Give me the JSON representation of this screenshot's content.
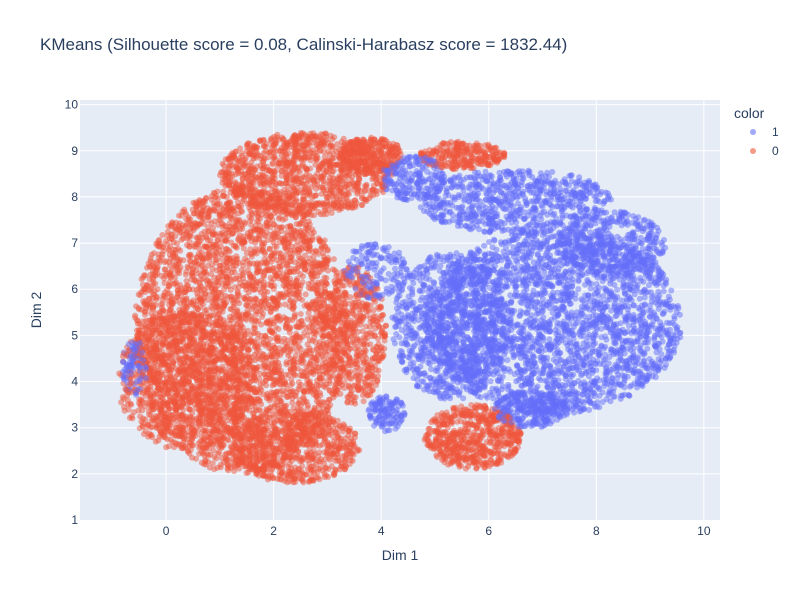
{
  "chart_data": {
    "type": "scatter",
    "title": "KMeans (Silhouette score = 0.08, Calinski-Harabasz score = 1832.44)",
    "xlabel": "Dim 1",
    "ylabel": "Dim 2",
    "xlim": [
      -1.6,
      10.3
    ],
    "ylim": [
      1,
      10.1
    ],
    "xticks": [
      0,
      2,
      4,
      6,
      8,
      10
    ],
    "yticks": [
      1,
      2,
      3,
      4,
      5,
      6,
      7,
      8,
      9,
      10
    ],
    "grid": true,
    "legend": {
      "title": "color",
      "placement": "top-right",
      "entries": [
        {
          "label": "1",
          "color": "#636efa"
        },
        {
          "label": "0",
          "color": "#EF553B"
        }
      ]
    },
    "series": [
      {
        "name": "1",
        "color": "#636efa",
        "regions": [
          {
            "cx": 7.2,
            "cy": 5.3,
            "rx": 2.4,
            "ry": 2.0,
            "n": 2600
          },
          {
            "cx": 5.3,
            "cy": 5.2,
            "rx": 1.1,
            "ry": 1.6,
            "n": 900
          },
          {
            "cx": 6.5,
            "cy": 7.9,
            "rx": 1.8,
            "ry": 0.7,
            "n": 700
          },
          {
            "cx": 8.3,
            "cy": 7.0,
            "rx": 1.0,
            "ry": 0.7,
            "n": 400
          },
          {
            "cx": 4.6,
            "cy": 8.4,
            "rx": 0.6,
            "ry": 0.5,
            "n": 200
          },
          {
            "cx": 3.9,
            "cy": 6.4,
            "rx": 0.6,
            "ry": 0.6,
            "n": 150
          },
          {
            "cx": 4.1,
            "cy": 3.3,
            "rx": 0.35,
            "ry": 0.4,
            "n": 120
          },
          {
            "cx": 6.8,
            "cy": 3.4,
            "rx": 0.7,
            "ry": 0.4,
            "n": 250
          },
          {
            "cx": -0.6,
            "cy": 4.3,
            "rx": 0.25,
            "ry": 0.6,
            "n": 80
          }
        ]
      },
      {
        "name": "0",
        "color": "#EF553B",
        "regions": [
          {
            "cx": 1.4,
            "cy": 5.1,
            "rx": 2.0,
            "ry": 3.1,
            "n": 3600
          },
          {
            "cx": 2.6,
            "cy": 8.5,
            "rx": 1.6,
            "ry": 0.9,
            "n": 1100
          },
          {
            "cx": 0.4,
            "cy": 4.0,
            "rx": 1.3,
            "ry": 1.5,
            "n": 900
          },
          {
            "cx": 2.4,
            "cy": 2.6,
            "rx": 1.2,
            "ry": 0.8,
            "n": 700
          },
          {
            "cx": 3.5,
            "cy": 5.0,
            "rx": 0.6,
            "ry": 1.5,
            "n": 500
          },
          {
            "cx": 5.7,
            "cy": 2.8,
            "rx": 0.9,
            "ry": 0.7,
            "n": 600
          },
          {
            "cx": 5.5,
            "cy": 8.9,
            "rx": 0.8,
            "ry": 0.3,
            "n": 250
          },
          {
            "cx": 3.8,
            "cy": 8.9,
            "rx": 0.6,
            "ry": 0.4,
            "n": 250
          }
        ]
      }
    ]
  }
}
